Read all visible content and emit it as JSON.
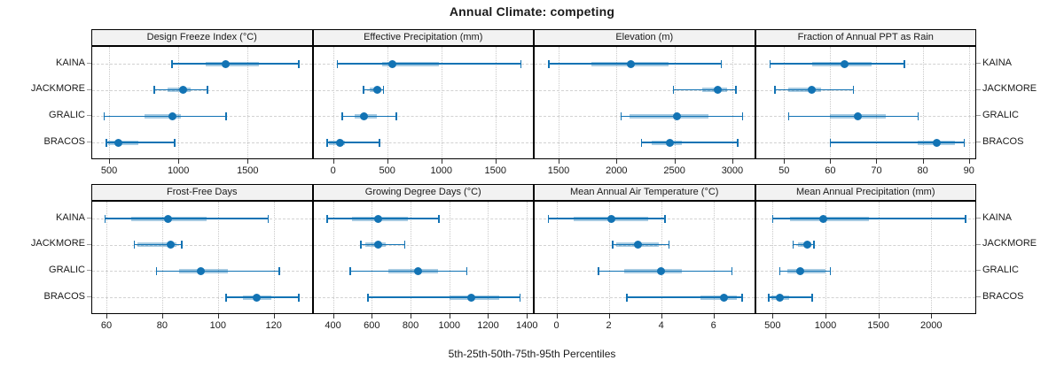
{
  "title": "Annual Climate: competing",
  "xlabel": "5th-25th-50th-75th-95th Percentiles",
  "sites": [
    "KAINA",
    "JACKMORE",
    "GRALIC",
    "BRACOS"
  ],
  "colors": {
    "accent": "#1273b4",
    "band": "rgba(18,115,180,0.38)",
    "header_bg": "#f2f2f2",
    "grid": "#c9c9c9",
    "border": "#000000"
  },
  "chart_data": {
    "type": "dotplot-percentiles",
    "title": "Annual Climate: competing",
    "xlabel": "5th-25th-50th-75th-95th Percentiles",
    "percentile_labels": [
      "5th",
      "25th",
      "50th",
      "75th",
      "95th"
    ],
    "site_order_top_to_bottom": [
      "KAINA",
      "JACKMORE",
      "GRALIC",
      "BRACOS"
    ],
    "grid": "dotted vertical at ticks, dashed horizontal at rows",
    "legend_position": "none",
    "panels": [
      {
        "row": 0,
        "col": 0,
        "header": "Design Freeze Index (°C)",
        "xlim": [
          378,
          1962
        ],
        "ticks": [
          500,
          1000,
          1500
        ],
        "series": [
          {
            "site": "KAINA",
            "percentiles": [
              955,
              1200,
              1340,
              1580,
              1870
            ]
          },
          {
            "site": "JACKMORE",
            "percentiles": [
              825,
              925,
              1035,
              1090,
              1210
            ]
          },
          {
            "site": "GRALIC",
            "percentiles": [
              465,
              755,
              960,
              1020,
              1345
            ]
          },
          {
            "site": "BRACOS",
            "percentiles": [
              480,
              495,
              565,
              710,
              975
            ]
          }
        ]
      },
      {
        "row": 0,
        "col": 1,
        "header": "Effective Precipitation (mm)",
        "xlim": [
          -182,
          1846
        ],
        "ticks": [
          0,
          500,
          1000,
          1500
        ],
        "series": [
          {
            "site": "KAINA",
            "percentiles": [
              40,
              450,
              550,
              975,
              1735
            ]
          },
          {
            "site": "JACKMORE",
            "percentiles": [
              280,
              340,
              405,
              445,
              465
            ]
          },
          {
            "site": "GRALIC",
            "percentiles": [
              85,
              200,
              285,
              405,
              585
            ]
          },
          {
            "site": "BRACOS",
            "percentiles": [
              -55,
              -35,
              60,
              110,
              430
            ]
          }
        ]
      },
      {
        "row": 0,
        "col": 2,
        "header": "Elevation (m)",
        "xlim": [
          1293,
          3188
        ],
        "ticks": [
          1500,
          2000,
          2500,
          3000
        ],
        "series": [
          {
            "site": "KAINA",
            "percentiles": [
              1415,
              1780,
              2125,
              2450,
              2905
            ]
          },
          {
            "site": "JACKMORE",
            "percentiles": [
              2490,
              2740,
              2875,
              2955,
              3030
            ]
          },
          {
            "site": "GRALIC",
            "percentiles": [
              2040,
              2110,
              2525,
              2790,
              3090
            ]
          },
          {
            "site": "BRACOS",
            "percentiles": [
              2215,
              2300,
              2460,
              2565,
              3045
            ]
          }
        ]
      },
      {
        "row": 0,
        "col": 3,
        "header": "Fraction of Annual PPT as Rain",
        "xlim": [
          43.9,
          91.4
        ],
        "ticks": [
          50,
          60,
          70,
          80,
          90
        ],
        "series": [
          {
            "site": "KAINA",
            "percentiles": [
              47,
              56,
              63,
              69,
              76
            ]
          },
          {
            "site": "JACKMORE",
            "percentiles": [
              48,
              51,
              56,
              58,
              65
            ]
          },
          {
            "site": "GRALIC",
            "percentiles": [
              51,
              60,
              66,
              72,
              79
            ]
          },
          {
            "site": "BRACOS",
            "percentiles": [
              60,
              79,
              83,
              87,
              89
            ]
          }
        ]
      },
      {
        "row": 1,
        "col": 0,
        "header": "Frost-Free Days",
        "xlim": [
          54.9,
          133.6
        ],
        "ticks": [
          60,
          80,
          100,
          120
        ],
        "series": [
          {
            "site": "KAINA",
            "percentiles": [
              59.5,
              69,
              82,
              96,
              118
            ]
          },
          {
            "site": "JACKMORE",
            "percentiles": [
              70,
              71,
              83,
              85,
              87
            ]
          },
          {
            "site": "GRALIC",
            "percentiles": [
              78,
              86,
              94,
              103.5,
              122
            ]
          },
          {
            "site": "BRACOS",
            "percentiles": [
              103,
              109,
              114,
              119,
              129
            ]
          }
        ]
      },
      {
        "row": 1,
        "col": 1,
        "header": "Growing Degree Days (°C)",
        "xlim": [
          299,
          1431
        ],
        "ticks": [
          400,
          600,
          800,
          1000,
          1200,
          1400
        ],
        "series": [
          {
            "site": "KAINA",
            "percentiles": [
              370,
              500,
              635,
              785,
              945
            ]
          },
          {
            "site": "JACKMORE",
            "percentiles": [
              545,
              565,
              635,
              670,
              770
            ]
          },
          {
            "site": "GRALIC",
            "percentiles": [
              490,
              685,
              840,
              940,
              1090
            ]
          },
          {
            "site": "BRACOS",
            "percentiles": [
              580,
              1000,
              1115,
              1255,
              1365
            ]
          }
        ]
      },
      {
        "row": 1,
        "col": 2,
        "header": "Mean Annual Air Temperature (°C)",
        "xlim": [
          -0.83,
          7.55
        ],
        "ticks": [
          0,
          2,
          4,
          6
        ],
        "series": [
          {
            "site": "KAINA",
            "percentiles": [
              -0.3,
              0.65,
              2.1,
              3.5,
              4.15
            ]
          },
          {
            "site": "JACKMORE",
            "percentiles": [
              2.15,
              2.3,
              3.1,
              3.9,
              4.3
            ]
          },
          {
            "site": "GRALIC",
            "percentiles": [
              1.6,
              2.6,
              4.0,
              4.8,
              6.7
            ]
          },
          {
            "site": "BRACOS",
            "percentiles": [
              2.7,
              5.5,
              6.4,
              6.9,
              7.1
            ]
          }
        ]
      },
      {
        "row": 1,
        "col": 3,
        "header": "Mean Annual Precipitation (mm)",
        "xlim": [
          342,
          2417
        ],
        "ticks": [
          500,
          1000,
          1500,
          2000
        ],
        "series": [
          {
            "site": "KAINA",
            "percentiles": [
              500,
              665,
              975,
              1415,
              2325
            ]
          },
          {
            "site": "JACKMORE",
            "percentiles": [
              695,
              740,
              830,
              870,
              890
            ]
          },
          {
            "site": "GRALIC",
            "percentiles": [
              570,
              640,
              765,
              1000,
              1045
            ]
          },
          {
            "site": "BRACOS",
            "percentiles": [
              465,
              490,
              570,
              655,
              875
            ]
          }
        ]
      }
    ]
  }
}
